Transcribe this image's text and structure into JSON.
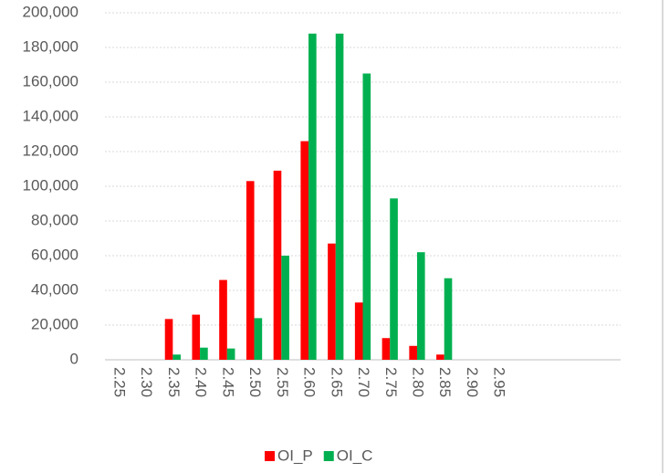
{
  "chart_data": {
    "type": "bar",
    "categories": [
      "2.25",
      "2.30",
      "2.35",
      "2.40",
      "2.45",
      "2.50",
      "2.55",
      "2.60",
      "2.65",
      "2.70",
      "2.75",
      "2.80",
      "2.85",
      "2.90",
      "2.95",
      null,
      null,
      null,
      null
    ],
    "series": [
      {
        "name": "OI_P",
        "color": "#ff0000",
        "values": [
          0,
          0,
          23500,
          26000,
          46000,
          103000,
          109000,
          126000,
          67000,
          33000,
          12500,
          8000,
          3000,
          0,
          0,
          0,
          0,
          0,
          0
        ]
      },
      {
        "name": "OI_C",
        "color": "#00b050",
        "values": [
          0,
          0,
          3000,
          7000,
          6500,
          24000,
          60000,
          188000,
          188000,
          165000,
          93000,
          62000,
          47000,
          0,
          0,
          0,
          0,
          0,
          0
        ]
      }
    ],
    "ylim": [
      0,
      200000
    ],
    "yticks": [
      0,
      {
        "value": 20000,
        "label": "20,000"
      },
      {
        "value": 40000,
        "label": "40,000"
      },
      {
        "value": 60000,
        "label": "60,000"
      },
      {
        "value": 80000,
        "label": "80,000"
      },
      {
        "value": 100000,
        "label": "100,000"
      },
      {
        "value": 120000,
        "label": "120,000"
      },
      {
        "value": 140000,
        "label": "140,000"
      },
      {
        "value": 160000,
        "label": "160,000"
      },
      {
        "value": 180000,
        "label": "180,000"
      },
      {
        "value": 200000,
        "label": "200,000"
      }
    ],
    "grid": true,
    "legend": "bottom"
  }
}
